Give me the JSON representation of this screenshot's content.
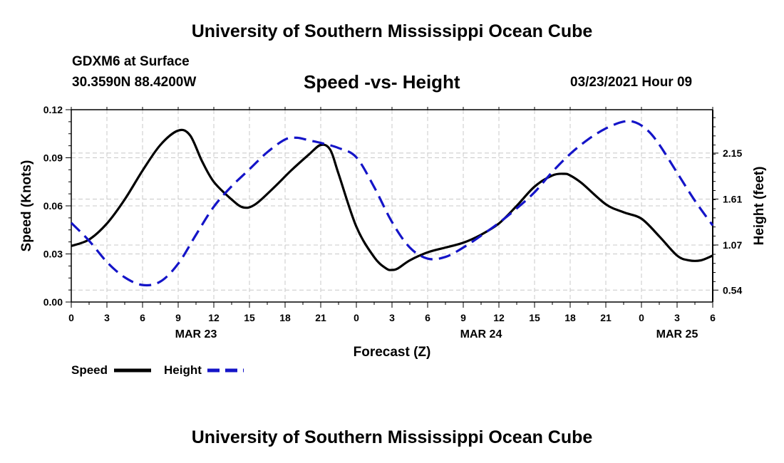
{
  "header": {
    "title": "University of Southern Mississippi Ocean Cube",
    "station": "GDXM6 at Surface",
    "coords": "30.3590N 88.4200W",
    "datetime": "03/23/2021 Hour 09"
  },
  "footer": {
    "title": "University of Southern Mississippi Ocean Cube"
  },
  "legend": {
    "speed_label": "Speed",
    "height_label": "Height"
  },
  "colors": {
    "speed": "#000000",
    "height": "#1414c8",
    "grid": "#c8c8c8"
  },
  "chart_data": {
    "type": "line",
    "title": "Speed -vs- Height",
    "xlabel": "Forecast (Z)",
    "ylabel": "Speed (Knots)",
    "y2label": "Height (feet)",
    "x_ticks": [
      0,
      3,
      6,
      9,
      12,
      15,
      18,
      21,
      24,
      27,
      30,
      33,
      36,
      39,
      42,
      45,
      48,
      51,
      54
    ],
    "x_tick_labels": [
      "0",
      "3",
      "6",
      "9",
      "12",
      "15",
      "18",
      "21",
      "0",
      "3",
      "6",
      "9",
      "12",
      "15",
      "18",
      "21",
      "0",
      "3",
      "6"
    ],
    "date_labels": [
      {
        "x": 10.5,
        "label": "MAR 23"
      },
      {
        "x": 34.5,
        "label": "MAR 24"
      },
      {
        "x": 51,
        "label": "MAR 25"
      }
    ],
    "xlim": [
      0,
      54
    ],
    "ylim": [
      0,
      0.12
    ],
    "y_ticks": [
      0.0,
      0.03,
      0.06,
      0.09,
      0.12
    ],
    "y_tick_labels": [
      "0.00",
      "0.03",
      "0.06",
      "0.09",
      "0.12"
    ],
    "y2lim": [
      0.4,
      2.66
    ],
    "y2_ticks": [
      0.54,
      1.07,
      1.61,
      2.15
    ],
    "y2_tick_labels": [
      "0.54",
      "1.07",
      "1.61",
      "2.15"
    ],
    "grid": true,
    "series": [
      {
        "name": "Speed",
        "axis": "left",
        "style": "solid",
        "x": [
          0,
          1.5,
          3,
          4.5,
          6,
          7.5,
          9,
          10,
          11,
          12,
          13.5,
          14.5,
          15.5,
          17,
          18.5,
          20,
          21,
          21.8,
          22.5,
          24,
          25.5,
          26.5,
          27,
          27.5,
          28.5,
          30,
          31.5,
          33,
          34.5,
          36,
          37.5,
          39,
          40.5,
          41.5,
          42,
          43,
          45,
          46.5,
          48,
          49.5,
          51,
          52,
          53,
          54
        ],
        "values": [
          0.035,
          0.039,
          0.049,
          0.064,
          0.082,
          0.098,
          0.107,
          0.104,
          0.088,
          0.075,
          0.064,
          0.059,
          0.061,
          0.071,
          0.082,
          0.092,
          0.098,
          0.095,
          0.08,
          0.047,
          0.028,
          0.021,
          0.02,
          0.021,
          0.026,
          0.031,
          0.034,
          0.037,
          0.042,
          0.049,
          0.06,
          0.072,
          0.079,
          0.08,
          0.079,
          0.074,
          0.061,
          0.056,
          0.052,
          0.041,
          0.029,
          0.026,
          0.026,
          0.029
        ]
      },
      {
        "name": "Height",
        "axis": "right",
        "style": "dashed",
        "x": [
          0,
          1.5,
          3,
          4.5,
          6,
          7.5,
          9,
          10.5,
          12,
          13.5,
          15,
          16.5,
          18,
          19,
          20,
          21,
          22.5,
          24,
          25.5,
          27,
          28.5,
          30,
          31.5,
          33,
          34.5,
          36,
          37.5,
          39,
          40.5,
          42,
          43.5,
          45,
          46.5,
          47.5,
          48.5,
          49.5,
          51,
          52.5,
          54
        ],
        "values": [
          1.33,
          1.12,
          0.87,
          0.69,
          0.6,
          0.64,
          0.85,
          1.19,
          1.52,
          1.76,
          1.96,
          2.16,
          2.31,
          2.33,
          2.3,
          2.27,
          2.21,
          2.1,
          1.75,
          1.34,
          1.04,
          0.91,
          0.93,
          1.04,
          1.18,
          1.33,
          1.5,
          1.69,
          1.93,
          2.14,
          2.31,
          2.44,
          2.52,
          2.51,
          2.42,
          2.25,
          1.92,
          1.59,
          1.3
        ]
      }
    ]
  }
}
